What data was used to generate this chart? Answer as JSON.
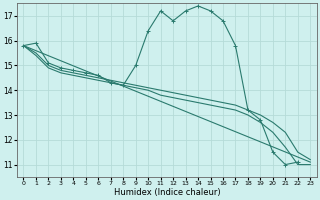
{
  "xlabel": "Humidex (Indice chaleur)",
  "ylabel": "",
  "background_color": "#cff0ee",
  "grid_color": "#b5dbd8",
  "line_color": "#2a7a6e",
  "xlim": [
    -0.5,
    23.5
  ],
  "ylim": [
    10.5,
    17.5
  ],
  "yticks": [
    11,
    12,
    13,
    14,
    15,
    16,
    17
  ],
  "xticks": [
    0,
    1,
    2,
    3,
    4,
    5,
    6,
    7,
    8,
    9,
    10,
    11,
    12,
    13,
    14,
    15,
    16,
    17,
    18,
    19,
    20,
    21,
    22,
    23
  ],
  "series": [
    {
      "x": [
        0,
        1,
        2,
        3,
        4,
        5,
        6,
        7,
        8,
        9,
        10,
        11,
        12,
        13,
        14,
        15,
        16,
        17,
        18,
        19,
        20,
        21,
        22
      ],
      "y": [
        15.8,
        15.9,
        15.1,
        14.9,
        14.8,
        14.7,
        14.6,
        14.3,
        14.2,
        15.0,
        16.4,
        17.2,
        16.8,
        17.2,
        17.4,
        17.2,
        16.8,
        15.8,
        13.2,
        12.8,
        11.5,
        11.0,
        11.1
      ],
      "marker": "+"
    },
    {
      "x": [
        0,
        1,
        2,
        3,
        4,
        5,
        6,
        7,
        8,
        9,
        10,
        11,
        12,
        13,
        14,
        15,
        16,
        17,
        18,
        19,
        20,
        21,
        22,
        23
      ],
      "y": [
        15.8,
        15.5,
        15.0,
        14.8,
        14.7,
        14.6,
        14.5,
        14.4,
        14.3,
        14.2,
        14.1,
        14.0,
        13.9,
        13.8,
        13.7,
        13.6,
        13.5,
        13.4,
        13.2,
        13.0,
        12.7,
        12.3,
        11.5,
        11.2
      ],
      "marker": null
    },
    {
      "x": [
        0,
        1,
        2,
        3,
        4,
        5,
        6,
        7,
        8,
        9,
        10,
        11,
        12,
        13,
        14,
        15,
        16,
        17,
        18,
        19,
        20,
        21,
        22,
        23
      ],
      "y": [
        15.8,
        15.4,
        14.9,
        14.7,
        14.6,
        14.5,
        14.4,
        14.3,
        14.2,
        14.1,
        14.0,
        13.8,
        13.7,
        13.6,
        13.5,
        13.4,
        13.3,
        13.2,
        13.0,
        12.7,
        12.3,
        11.7,
        11.0,
        11.0
      ],
      "marker": null
    },
    {
      "x": [
        0,
        23
      ],
      "y": [
        15.8,
        11.1
      ],
      "marker": null
    }
  ]
}
